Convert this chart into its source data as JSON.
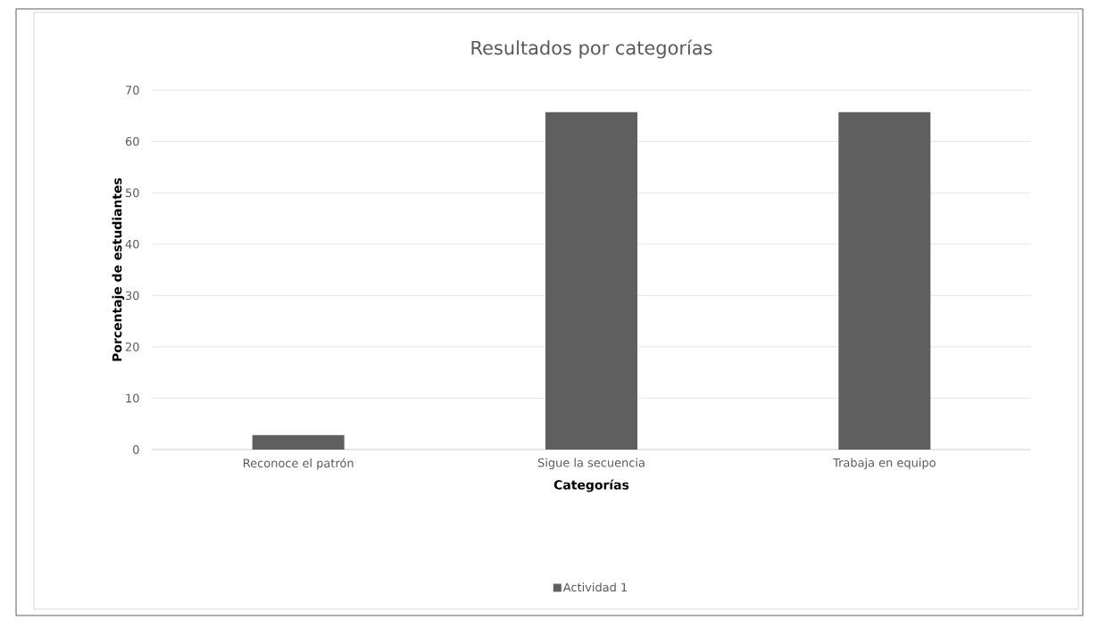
{
  "chart_data": {
    "type": "bar",
    "title": "Resultados por categorías",
    "xlabel": "Categorías",
    "ylabel": "Porcentaje de estudiantes",
    "categories": [
      "Reconoce el patrón",
      "Sigue la secuencia",
      "Trabaja en equipo"
    ],
    "series": [
      {
        "name": "Actividad 1",
        "color": "#5f5f5f",
        "values": [
          2.8,
          65.7,
          65.7
        ]
      }
    ],
    "ylim": [
      0,
      70
    ],
    "yticks": [
      0,
      10,
      20,
      30,
      40,
      50,
      60,
      70
    ],
    "grid": "y",
    "legend": "bottom"
  }
}
